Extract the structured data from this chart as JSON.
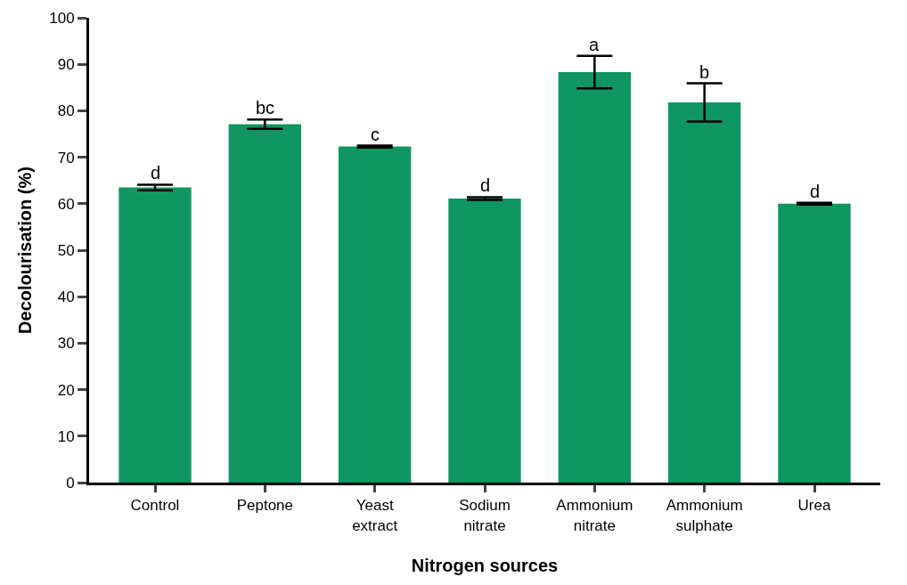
{
  "chart_data": {
    "type": "bar",
    "xlabel": "Nitrogen sources",
    "ylabel": "Decolourisation (%)",
    "categories": [
      "Control",
      "Peptone",
      "Yeast extract",
      "Sodium nitrate",
      "Ammonium nitrate",
      "Ammonium sulphate",
      "Urea"
    ],
    "values": [
      63.5,
      77.1,
      72.3,
      61.1,
      88.3,
      81.8,
      60.0
    ],
    "errors": [
      0.6,
      1.0,
      0.2,
      0.3,
      3.5,
      4.1,
      0.2
    ],
    "color": "#0f9663",
    "ylim": [
      0,
      100
    ],
    "yticks": [
      0,
      10,
      20,
      30,
      40,
      50,
      60,
      70,
      80,
      90,
      100
    ],
    "grid": false,
    "annotations": [
      {
        "text": "d",
        "x": "Control",
        "y": 64.1
      },
      {
        "text": "bc",
        "x": "Peptone",
        "y": 78.1
      },
      {
        "text": "c",
        "x": "Yeast extract",
        "y": 72.5
      },
      {
        "text": "d",
        "x": "Sodium nitrate",
        "y": 61.4
      },
      {
        "text": "a",
        "x": "Ammonium nitrate",
        "y": 91.8
      },
      {
        "text": "b",
        "x": "Ammonium sulphate",
        "y": 85.9
      },
      {
        "text": "d",
        "x": "Urea",
        "y": 60.2
      }
    ]
  }
}
